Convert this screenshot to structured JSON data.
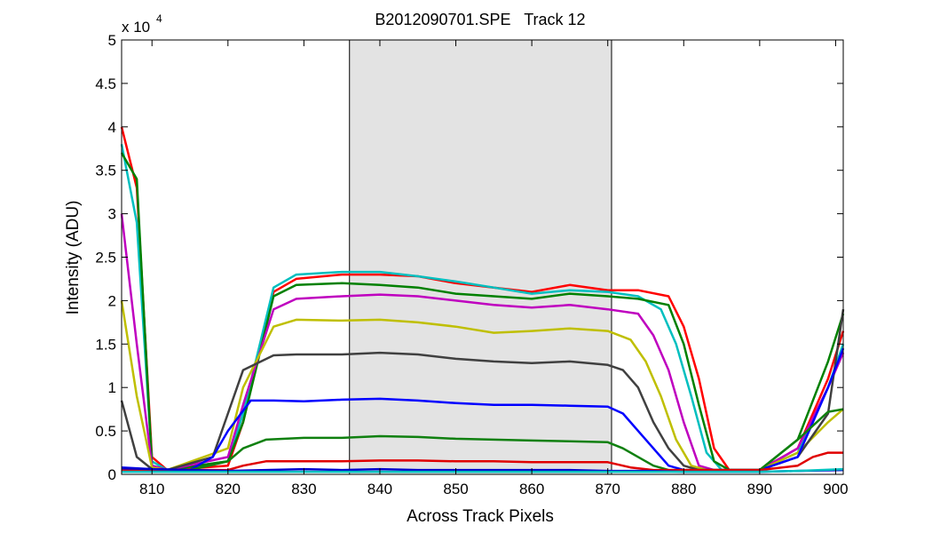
{
  "chart_data": {
    "type": "line",
    "title": "B2012090701.SPE   Track 12",
    "xlabel": "Across Track Pixels",
    "ylabel": "Intensity (ADU)",
    "y_exponent_base": "x 10",
    "y_exponent_power": "4",
    "xlim": [
      806,
      901
    ],
    "ylim": [
      0,
      5
    ],
    "xticks": [
      810,
      820,
      830,
      840,
      850,
      860,
      870,
      880,
      890,
      900
    ],
    "yticks": [
      0,
      0.5,
      1,
      1.5,
      2,
      2.5,
      3,
      3.5,
      4,
      4.5,
      5
    ],
    "yticklabels": [
      "0",
      "0.5",
      "1",
      "1.5",
      "2",
      "2.5",
      "3",
      "3.5",
      "4",
      "4.5",
      "5"
    ],
    "highlight_region": [
      836,
      870.5
    ],
    "grid": false,
    "series": [
      {
        "color": "#ff0000",
        "x": [
          806,
          808,
          810,
          812,
          820,
          822,
          826,
          829,
          835,
          840,
          845,
          850,
          855,
          860,
          865,
          870,
          874,
          878,
          880,
          882,
          884,
          886,
          890,
          895,
          899,
          901
        ],
        "values": [
          4.0,
          3.3,
          0.2,
          0.05,
          0.1,
          0.6,
          2.1,
          2.25,
          2.3,
          2.3,
          2.28,
          2.2,
          2.15,
          2.1,
          2.18,
          2.12,
          2.12,
          2.05,
          1.7,
          1.1,
          0.3,
          0.05,
          0.05,
          0.3,
          1.1,
          1.65
        ]
      },
      {
        "color": "#00bfbf",
        "x": [
          806,
          808,
          810,
          812,
          820,
          822,
          826,
          829,
          835,
          840,
          845,
          850,
          855,
          860,
          865,
          870,
          874,
          877,
          879,
          881,
          883,
          885,
          890,
          895,
          899,
          901
        ],
        "values": [
          3.8,
          2.9,
          0.15,
          0.05,
          0.15,
          0.7,
          2.15,
          2.3,
          2.33,
          2.33,
          2.28,
          2.22,
          2.15,
          2.08,
          2.12,
          2.1,
          2.05,
          1.9,
          1.5,
          0.9,
          0.25,
          0.05,
          0.05,
          0.25,
          1.0,
          1.5
        ]
      },
      {
        "color": "#008000",
        "x": [
          806,
          808,
          810,
          812,
          820,
          822,
          826,
          829,
          835,
          840,
          845,
          850,
          855,
          860,
          865,
          870,
          874,
          878,
          880,
          882,
          884,
          886,
          890,
          895,
          899,
          901
        ],
        "values": [
          3.7,
          3.4,
          0.1,
          0.05,
          0.15,
          0.6,
          2.05,
          2.18,
          2.2,
          2.18,
          2.15,
          2.08,
          2.05,
          2.02,
          2.08,
          2.05,
          2.02,
          1.95,
          1.5,
          0.8,
          0.15,
          0.05,
          0.05,
          0.4,
          1.3,
          1.85
        ]
      },
      {
        "color": "#bf00bf",
        "x": [
          806,
          808,
          810,
          812,
          820,
          822,
          826,
          829,
          835,
          840,
          845,
          850,
          855,
          860,
          865,
          870,
          874,
          876,
          878,
          880,
          882,
          884,
          890,
          895,
          899,
          901
        ],
        "values": [
          3.0,
          1.5,
          0.1,
          0.05,
          0.2,
          0.8,
          1.9,
          2.02,
          2.05,
          2.07,
          2.05,
          2.0,
          1.95,
          1.92,
          1.95,
          1.9,
          1.85,
          1.6,
          1.2,
          0.6,
          0.1,
          0.05,
          0.05,
          0.3,
          1.0,
          1.4
        ]
      },
      {
        "color": "#bfbf00",
        "x": [
          806,
          808,
          810,
          812,
          820,
          822,
          826,
          829,
          835,
          840,
          845,
          850,
          855,
          860,
          865,
          870,
          873,
          875,
          877,
          879,
          881,
          883,
          890,
          895,
          899,
          901
        ],
        "values": [
          2.0,
          0.9,
          0.08,
          0.05,
          0.3,
          1.0,
          1.7,
          1.78,
          1.77,
          1.78,
          1.75,
          1.7,
          1.63,
          1.65,
          1.68,
          1.65,
          1.55,
          1.3,
          0.9,
          0.4,
          0.1,
          0.05,
          0.05,
          0.25,
          0.6,
          0.75
        ]
      },
      {
        "color": "#404040",
        "x": [
          806,
          808,
          810,
          812,
          818,
          822,
          826,
          829,
          835,
          840,
          845,
          850,
          855,
          860,
          865,
          870,
          872,
          874,
          876,
          878,
          880,
          882,
          890,
          895,
          899,
          901
        ],
        "values": [
          0.85,
          0.2,
          0.06,
          0.05,
          0.2,
          1.2,
          1.37,
          1.38,
          1.38,
          1.4,
          1.38,
          1.33,
          1.3,
          1.28,
          1.3,
          1.26,
          1.2,
          1.0,
          0.6,
          0.3,
          0.1,
          0.05,
          0.05,
          0.2,
          0.7,
          1.9
        ]
      },
      {
        "color": "#0000ff",
        "x": [
          806,
          810,
          815,
          818,
          820,
          823,
          826,
          830,
          835,
          840,
          845,
          850,
          855,
          860,
          865,
          870,
          872,
          874,
          876,
          878,
          880,
          882,
          890,
          895,
          899,
          901
        ],
        "values": [
          0.08,
          0.06,
          0.05,
          0.2,
          0.5,
          0.85,
          0.85,
          0.84,
          0.86,
          0.87,
          0.85,
          0.82,
          0.8,
          0.8,
          0.79,
          0.78,
          0.7,
          0.5,
          0.3,
          0.1,
          0.05,
          0.05,
          0.05,
          0.2,
          1.0,
          1.45
        ]
      },
      {
        "color": "#108010",
        "x": [
          806,
          810,
          815,
          820,
          822,
          825,
          830,
          835,
          840,
          845,
          850,
          855,
          860,
          865,
          870,
          872,
          874,
          876,
          878,
          880,
          885,
          890,
          895,
          899,
          901
        ],
        "values": [
          0.05,
          0.05,
          0.05,
          0.15,
          0.3,
          0.4,
          0.42,
          0.42,
          0.44,
          0.43,
          0.41,
          0.4,
          0.39,
          0.38,
          0.37,
          0.3,
          0.2,
          0.1,
          0.05,
          0.05,
          0.05,
          0.05,
          0.4,
          0.72,
          0.75
        ]
      },
      {
        "color": "#e00000",
        "x": [
          806,
          815,
          820,
          822,
          825,
          830,
          835,
          840,
          845,
          850,
          855,
          860,
          865,
          870,
          873,
          876,
          880,
          890,
          895,
          897,
          899,
          901
        ],
        "values": [
          0.05,
          0.05,
          0.05,
          0.1,
          0.15,
          0.15,
          0.15,
          0.16,
          0.16,
          0.15,
          0.15,
          0.14,
          0.14,
          0.14,
          0.08,
          0.05,
          0.05,
          0.05,
          0.1,
          0.2,
          0.25,
          0.25
        ]
      },
      {
        "color": "#0000cc",
        "x": [
          806,
          815,
          820,
          825,
          830,
          835,
          840,
          845,
          850,
          855,
          860,
          865,
          870,
          875,
          880,
          890,
          895,
          901
        ],
        "values": [
          0.07,
          0.05,
          0.04,
          0.05,
          0.06,
          0.05,
          0.06,
          0.05,
          0.05,
          0.05,
          0.05,
          0.05,
          0.04,
          0.04,
          0.03,
          0.03,
          0.04,
          0.05
        ]
      },
      {
        "color": "#00c0c0",
        "x": [
          806,
          815,
          820,
          825,
          830,
          835,
          840,
          845,
          850,
          855,
          860,
          865,
          870,
          875,
          880,
          890,
          895,
          901
        ],
        "values": [
          0.03,
          0.03,
          0.03,
          0.03,
          0.03,
          0.03,
          0.03,
          0.03,
          0.03,
          0.03,
          0.03,
          0.03,
          0.03,
          0.03,
          0.03,
          0.03,
          0.04,
          0.06
        ]
      }
    ]
  }
}
